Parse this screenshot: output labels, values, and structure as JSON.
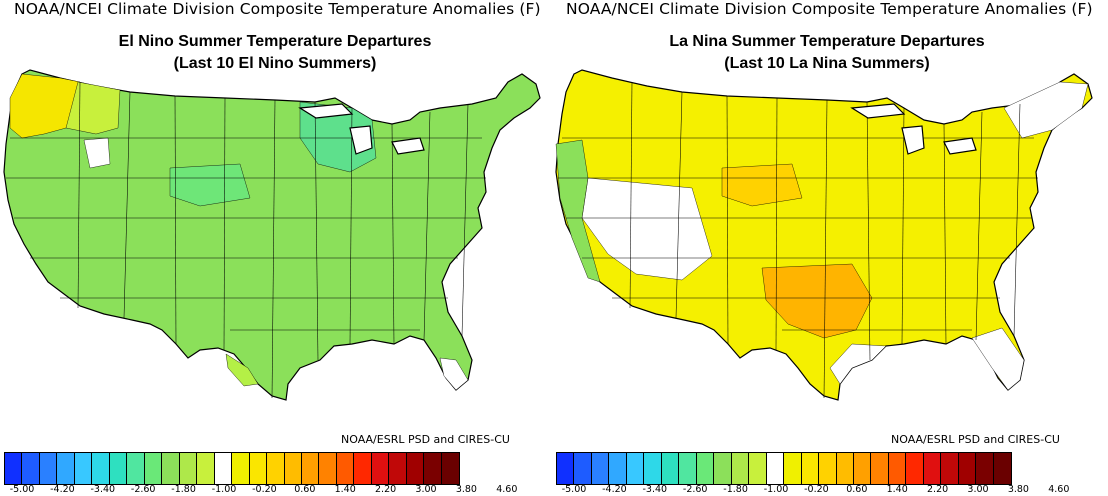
{
  "panels": [
    {
      "header": "NOAA/NCEI Climate Division Composite Temperature Anomalies (F)",
      "title_line1": "El Nino Summer Temperature Departures",
      "title_line2": "(Last 10 El Nino Summers)",
      "credit": "NOAA/ESRL PSD and CIRES-CU",
      "base_color": "#8be05a",
      "accent_regions": [
        {
          "name": "pacific-northwest",
          "color": "#f5e600"
        },
        {
          "name": "northwest-interior",
          "color": "#c8f03c"
        },
        {
          "name": "great-lakes",
          "color": "#5ee08c"
        },
        {
          "name": "central-plains",
          "color": "#6ee678"
        },
        {
          "name": "texas-coast",
          "color": "#b4f046"
        },
        {
          "name": "north-idaho-white",
          "color": "#ffffff"
        },
        {
          "name": "south-florida-white",
          "color": "#ffffff"
        }
      ]
    },
    {
      "header": "NOAA/NCEI Climate Division Composite Temperature Anomalies (F)",
      "title_line1": "La Nina Summer Temperature Departures",
      "title_line2": "(Last 10 La Nina Summers)",
      "credit": "NOAA/ESRL PSD and CIRES-CU",
      "base_color": "#f5f000",
      "accent_regions": [
        {
          "name": "southern-plains",
          "color": "#ffb400"
        },
        {
          "name": "central-plains",
          "color": "#ffd200"
        },
        {
          "name": "great-basin-white",
          "color": "#ffffff"
        },
        {
          "name": "west-coast",
          "color": "#8be05a"
        },
        {
          "name": "gulf-coast-white",
          "color": "#ffffff"
        },
        {
          "name": "florida-white",
          "color": "#ffffff"
        },
        {
          "name": "northeast-mixed",
          "color": "#ffffff"
        }
      ]
    }
  ],
  "colorbar": {
    "colors": [
      "#1030ff",
      "#1e5cff",
      "#2a80ff",
      "#30a8ff",
      "#38c8ff",
      "#2ed8e8",
      "#2ee0c0",
      "#50e6a0",
      "#6ae878",
      "#8ce05a",
      "#aee84a",
      "#c8f03c",
      "#ffffff",
      "#f0f000",
      "#fae600",
      "#ffd200",
      "#ffbc00",
      "#ffa000",
      "#ff8200",
      "#ff5a00",
      "#ff2800",
      "#e01010",
      "#c00808",
      "#a00000",
      "#7a0000",
      "#6a0000"
    ],
    "tick_labels": [
      "-5.00",
      "-4.20",
      "-3.40",
      "-2.60",
      "-1.80",
      "-1.00",
      "-0.20",
      "0.60",
      "1.40",
      "2.20",
      "3.00",
      "3.80",
      "4.60"
    ]
  }
}
